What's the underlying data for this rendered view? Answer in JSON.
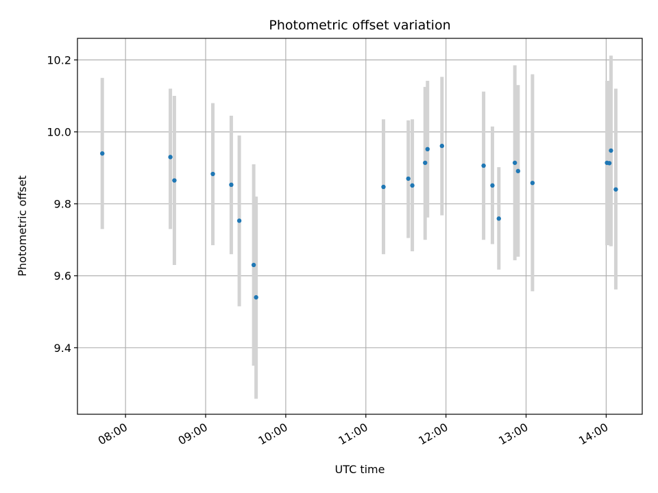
{
  "chart_data": {
    "type": "scatter",
    "title": "Photometric offset variation",
    "xlabel": "UTC time",
    "ylabel": "Photometric offset",
    "x_ticks": [
      "08:00",
      "09:00",
      "10:00",
      "11:00",
      "12:00",
      "13:00",
      "14:00"
    ],
    "x_tick_values": [
      8.0,
      9.0,
      10.0,
      11.0,
      12.0,
      13.0,
      14.0
    ],
    "y_ticks": [
      "9.4",
      "9.6",
      "9.8",
      "10.0",
      "10.2"
    ],
    "y_tick_values": [
      9.4,
      9.6,
      9.8,
      10.0,
      10.2
    ],
    "xlim": [
      7.4,
      14.45
    ],
    "ylim": [
      9.215,
      10.26
    ],
    "grid": true,
    "colors": {
      "points": "#1f77b4",
      "errorbars": "#d3d3d3",
      "grid": "#b0b0b0"
    },
    "points": [
      {
        "x": 7.71,
        "y": 9.94,
        "yerr_low": 9.73,
        "yerr_high": 10.15
      },
      {
        "x": 8.56,
        "y": 9.93,
        "yerr_low": 9.73,
        "yerr_high": 10.12
      },
      {
        "x": 8.61,
        "y": 9.865,
        "yerr_low": 9.63,
        "yerr_high": 10.1
      },
      {
        "x": 9.09,
        "y": 9.883,
        "yerr_low": 9.685,
        "yerr_high": 10.08
      },
      {
        "x": 9.32,
        "y": 9.853,
        "yerr_low": 9.66,
        "yerr_high": 10.045
      },
      {
        "x": 9.42,
        "y": 9.753,
        "yerr_low": 9.515,
        "yerr_high": 9.99
      },
      {
        "x": 9.6,
        "y": 9.63,
        "yerr_low": 9.35,
        "yerr_high": 9.91
      },
      {
        "x": 9.63,
        "y": 9.54,
        "yerr_low": 9.258,
        "yerr_high": 9.82
      },
      {
        "x": 11.22,
        "y": 9.847,
        "yerr_low": 9.66,
        "yerr_high": 10.035
      },
      {
        "x": 11.53,
        "y": 9.87,
        "yerr_low": 9.705,
        "yerr_high": 10.032
      },
      {
        "x": 11.58,
        "y": 9.851,
        "yerr_low": 9.668,
        "yerr_high": 10.035
      },
      {
        "x": 11.74,
        "y": 9.914,
        "yerr_low": 9.7,
        "yerr_high": 10.125
      },
      {
        "x": 11.77,
        "y": 9.952,
        "yerr_low": 9.762,
        "yerr_high": 10.142
      },
      {
        "x": 11.95,
        "y": 9.961,
        "yerr_low": 9.768,
        "yerr_high": 10.153
      },
      {
        "x": 12.47,
        "y": 9.906,
        "yerr_low": 9.7,
        "yerr_high": 10.112
      },
      {
        "x": 12.58,
        "y": 9.851,
        "yerr_low": 9.688,
        "yerr_high": 10.015
      },
      {
        "x": 12.66,
        "y": 9.759,
        "yerr_low": 9.617,
        "yerr_high": 9.902
      },
      {
        "x": 12.86,
        "y": 9.914,
        "yerr_low": 9.643,
        "yerr_high": 10.185
      },
      {
        "x": 12.9,
        "y": 9.891,
        "yerr_low": 9.653,
        "yerr_high": 10.13
      },
      {
        "x": 13.08,
        "y": 9.858,
        "yerr_low": 9.557,
        "yerr_high": 10.16
      },
      {
        "x": 14.01,
        "y": 9.914,
        "yerr_low": 9.685,
        "yerr_high": 10.142
      },
      {
        "x": 14.04,
        "y": 9.913,
        "yerr_low": 9.685,
        "yerr_high": 10.142
      },
      {
        "x": 14.06,
        "y": 9.948,
        "yerr_low": 9.682,
        "yerr_high": 10.212
      },
      {
        "x": 14.12,
        "y": 9.84,
        "yerr_low": 9.562,
        "yerr_high": 10.12
      }
    ]
  }
}
